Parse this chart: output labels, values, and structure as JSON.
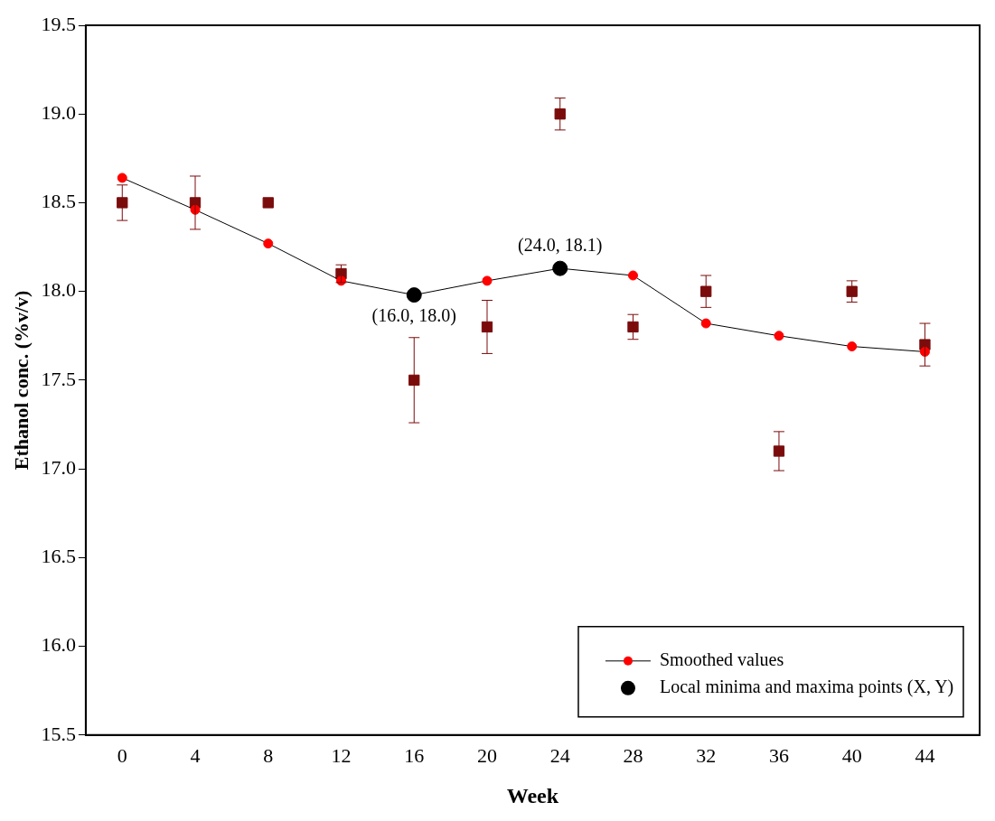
{
  "chart_data": {
    "type": "scatter",
    "xlabel": "Week",
    "ylabel": "Ethanol conc. (%v/v)",
    "x": [
      0,
      4,
      8,
      12,
      16,
      20,
      24,
      28,
      32,
      36,
      40,
      44
    ],
    "xlim": [
      -2,
      47
    ],
    "xticks": [
      0,
      4,
      8,
      12,
      16,
      20,
      24,
      28,
      32,
      36,
      40,
      44
    ],
    "ylim": [
      15.5,
      19.5
    ],
    "yticks": [
      15.5,
      {
        "value": 16,
        "label": "16.0"
      },
      16.5,
      {
        "value": 17,
        "label": "17.0"
      },
      17.5,
      {
        "value": 18,
        "label": "18.0"
      },
      18.5,
      {
        "value": 19,
        "label": "19.0"
      },
      19.5
    ],
    "grid": false,
    "legend": "bottom right",
    "series": [
      {
        "marker": "square",
        "color": "#7b0c0c",
        "values": [
          18.5,
          18.5,
          18.5,
          18.1,
          17.5,
          17.8,
          19.0,
          17.8,
          18.0,
          17.1,
          18.0,
          17.7
        ],
        "errors": [
          0.1,
          0.15,
          null,
          0.05,
          0.24,
          0.15,
          0.09,
          0.07,
          0.09,
          0.11,
          0.06,
          0.12
        ]
      },
      {
        "type": "line",
        "name": "Smoothed values",
        "marker": "circle",
        "color": "#ff0000",
        "values": [
          18.64,
          18.46,
          18.27,
          18.06,
          17.98,
          18.06,
          18.13,
          18.09,
          17.82,
          17.75,
          17.69,
          17.66
        ]
      },
      {
        "type": "scatter",
        "name": "Local minima and maxima points (X, Y)",
        "marker": "circle",
        "color": "#000000",
        "x": [
          16,
          24
        ],
        "values": [
          17.98,
          18.13
        ]
      }
    ],
    "annotations": [
      {
        "text": "(16.0, 18.0)",
        "x": 16,
        "y": 17.98
      },
      {
        "text": "(24.0, 18.1)",
        "x": 24,
        "y": 18.13
      }
    ]
  }
}
